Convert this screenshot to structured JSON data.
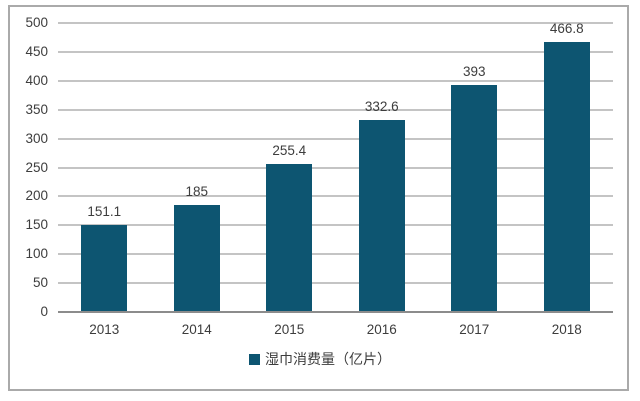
{
  "chart": {
    "legend_label": "湿巾消费量（亿片）",
    "colors": {
      "bar": "#0d5571",
      "grid": "#c4c4c4",
      "axis": "#8c8c8c",
      "text": "#3d3d3d",
      "frame": "#aaaaaa"
    }
  },
  "chart_data": {
    "type": "bar",
    "categories": [
      "2013",
      "2014",
      "2015",
      "2016",
      "2017",
      "2018"
    ],
    "values": [
      151.1,
      185,
      255.4,
      332.6,
      393,
      466.8
    ],
    "value_labels": [
      "151.1",
      "185",
      "255.4",
      "332.6",
      "393",
      "466.8"
    ],
    "title": "",
    "xlabel": "",
    "ylabel": "",
    "ylim": [
      0,
      500
    ],
    "ytick_step": 50,
    "grid": true,
    "legend": [
      "湿巾消费量（亿片）"
    ],
    "legend_position": "bottom"
  }
}
